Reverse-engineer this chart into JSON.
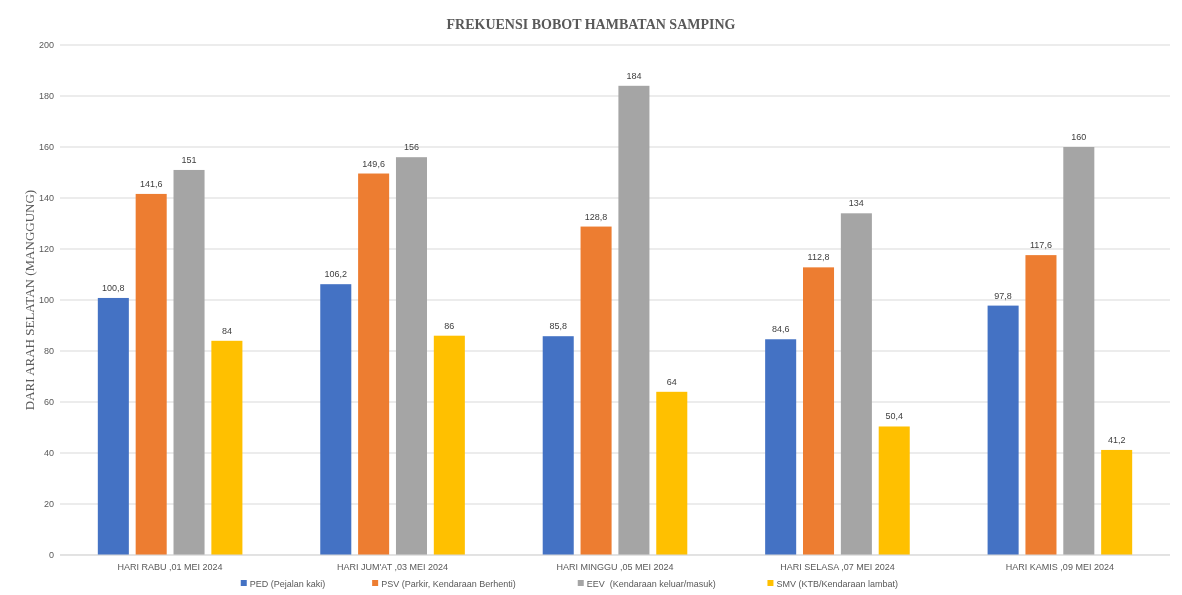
{
  "chart_data": {
    "type": "bar",
    "title": "FREKUENSI BOBOT HAMBATAN SAMPING",
    "ylabel": "DARI ARAH SELATAN (MANGGUNG)",
    "categories": [
      "HARI RABU ,01 MEI 2024",
      "HARI JUM'AT ,03 MEI 2024",
      "HARI MINGGU ,05 MEI 2024",
      "HARI SELASA ,07 MEI 2024",
      "HARI KAMIS ,09 MEI 2024"
    ],
    "series": [
      {
        "name": "PED (Pejalan kaki)",
        "color": "#4472c4",
        "values": [
          100.8,
          106.2,
          85.8,
          84.6,
          97.8
        ],
        "value_labels": [
          "100,8",
          "106,2",
          "85,8",
          "84,6",
          "97,8"
        ]
      },
      {
        "name": "PSV (Parkir, Kendaraan Berhenti)",
        "color": "#ed7d31",
        "values": [
          141.6,
          149.6,
          128.8,
          112.8,
          117.6
        ],
        "value_labels": [
          "141,6",
          "149,6",
          "128,8",
          "112,8",
          "117,6"
        ]
      },
      {
        "name": "EEV  (Kendaraan keluar/masuk)",
        "color": "#a5a5a5",
        "values": [
          151,
          156,
          184,
          134,
          160
        ],
        "value_labels": [
          "151",
          "156",
          "184",
          "134",
          "160"
        ]
      },
      {
        "name": "SMV (KTB/Kendaraan lambat)",
        "color": "#ffc000",
        "values": [
          84,
          86,
          64,
          50.4,
          41.2
        ],
        "value_labels": [
          "84",
          "86",
          "64",
          "50,4",
          "41,2"
        ]
      }
    ],
    "ylim": [
      0,
      200
    ],
    "yticks": [
      0,
      20,
      40,
      60,
      80,
      100,
      120,
      140,
      160,
      180,
      200
    ],
    "grid": "y",
    "legend": "bottom"
  }
}
